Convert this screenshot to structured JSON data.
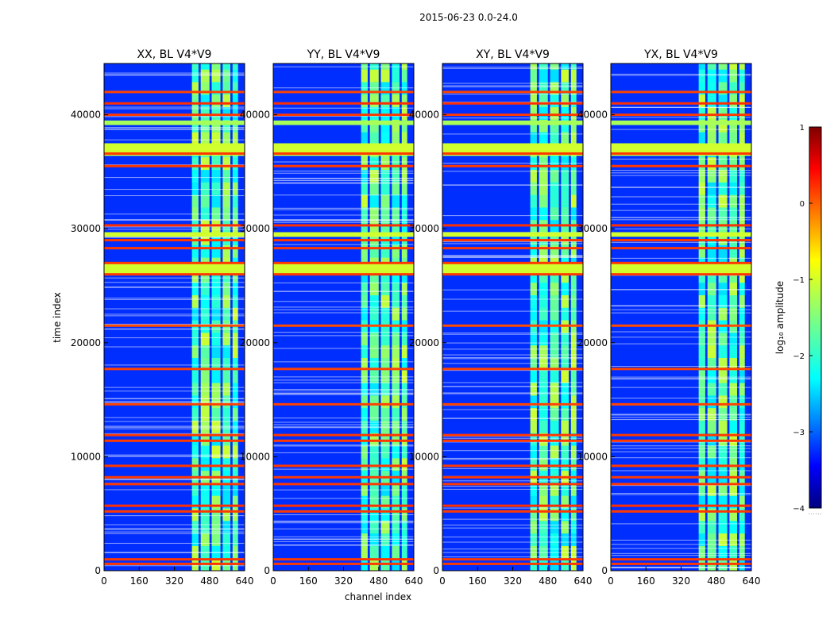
{
  "figure": {
    "suptitle": "2015-06-23 0.0-24.0"
  },
  "chart_data": {
    "type": "heatmap",
    "xlabel": "channel index",
    "ylabel": "time index",
    "xlim": [
      0,
      640
    ],
    "ylim": [
      0,
      44500
    ],
    "xticks": [
      "0",
      "160",
      "320",
      "480",
      "640"
    ],
    "yticks": [
      "0",
      "10000",
      "20000",
      "30000",
      "40000"
    ],
    "panels": [
      {
        "title": "XX, BL V4*V9",
        "band_start": 400
      },
      {
        "title": "YY, BL V4*V9",
        "band_start": 400
      },
      {
        "title": "XY, BL V4*V9",
        "band_start": 400
      },
      {
        "title": "YX, BL V4*V9",
        "band_start": 400
      }
    ],
    "active_channel_columns": [
      [
        400,
        430
      ],
      [
        440,
        480
      ],
      [
        490,
        530
      ],
      [
        540,
        575
      ],
      [
        585,
        610
      ]
    ],
    "rfi_rows_log10": [
      {
        "t": 600,
        "v": 0.1
      },
      {
        "t": 1000,
        "v": 0.1
      },
      {
        "t": 5200,
        "v": 0.1
      },
      {
        "t": 5700,
        "v": 0.15
      },
      {
        "t": 7600,
        "v": 0.1
      },
      {
        "t": 8200,
        "v": 0.1
      },
      {
        "t": 9200,
        "v": 0.1
      },
      {
        "t": 11400,
        "v": 0.1
      },
      {
        "t": 11900,
        "v": 0.1
      },
      {
        "t": 14600,
        "v": 0.05
      },
      {
        "t": 17700,
        "v": 0.05
      },
      {
        "t": 21500,
        "v": 0.0
      },
      {
        "t": 26000,
        "v": 0.1
      },
      {
        "t": 27000,
        "v": 0.1
      },
      {
        "t": 28300,
        "v": 0.1
      },
      {
        "t": 29000,
        "v": 0.1
      },
      {
        "t": 30300,
        "v": 0.15
      },
      {
        "t": 35500,
        "v": 0.1
      },
      {
        "t": 36600,
        "v": 0.1
      },
      {
        "t": 40000,
        "v": 0.1
      },
      {
        "t": 41000,
        "v": 0.15
      },
      {
        "t": 42000,
        "v": 0.05
      }
    ],
    "saturated_bands": [
      {
        "t0": 36400,
        "t1": 37500,
        "v": -1.1
      },
      {
        "t0": 26000,
        "t1": 27000,
        "v": -1.1
      },
      {
        "t0": 29300,
        "t1": 29700,
        "v": -1.1
      },
      {
        "t0": 39100,
        "t1": 39500,
        "v": -1.3
      }
    ],
    "colorbar": {
      "label": "log₁₀ amplitude",
      "range": [
        -4,
        1
      ],
      "ticks": [
        "1",
        "0",
        "−1",
        "−2",
        "−3",
        "−4"
      ],
      "note": "......",
      "colormap": "jet"
    }
  }
}
